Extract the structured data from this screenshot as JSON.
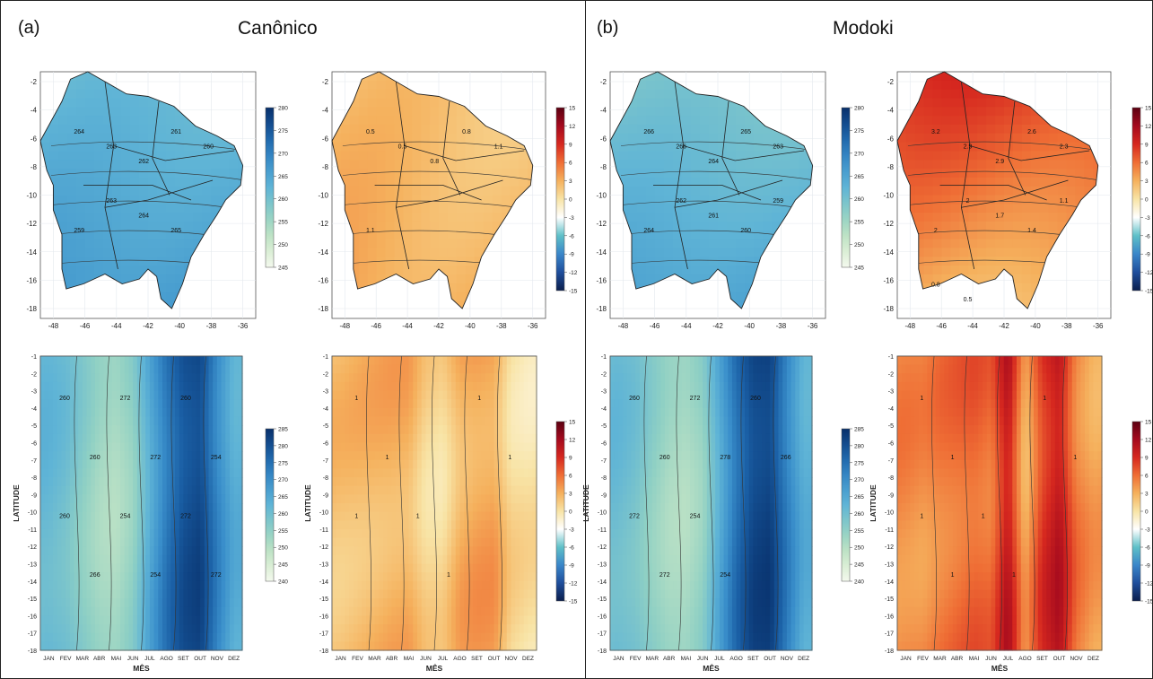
{
  "panels": [
    {
      "letter": "(a)",
      "title": "Canônico"
    },
    {
      "letter": "(b)",
      "title": "Modoki"
    }
  ],
  "colors": {
    "blue_scale": [
      "#f4f9ee",
      "#c8e6c5",
      "#8fd0c4",
      "#5fb4d6",
      "#3a8fcb",
      "#1a5fa5",
      "#08306b"
    ],
    "diverging_scale": [
      "#0b1e4d",
      "#1f4e9c",
      "#3a86c9",
      "#5fc0c8",
      "#ffffff",
      "#f8e4a6",
      "#f5b15d",
      "#ef6e35",
      "#d6281f",
      "#a50a1e",
      "#5c0011"
    ]
  },
  "chart_data": [
    {
      "type": "heatmap",
      "id": "a-map-mean",
      "panel": "(a)",
      "xticks": [
        -48,
        -46,
        -44,
        -42,
        -40,
        -38,
        -36
      ],
      "yticks": [
        -2,
        -4,
        -6,
        -8,
        -10,
        -12,
        -14,
        -16,
        -18
      ],
      "colorbar": {
        "min": 245,
        "max": 280,
        "ticks": [
          280,
          275,
          270,
          265,
          260,
          255,
          250,
          245
        ],
        "scale": "sequential"
      },
      "field": {
        "base": 0.45,
        "gx": 0.02,
        "gy": 0.18
      },
      "contour_labels": [
        "264",
        "263",
        "262",
        "261",
        "260",
        "259",
        "263",
        "264",
        "265"
      ]
    },
    {
      "type": "heatmap",
      "id": "a-map-anom",
      "panel": "(a)",
      "xticks": [
        -48,
        -46,
        -44,
        -42,
        -40,
        -38,
        -36
      ],
      "yticks": [
        -2,
        -4,
        -6,
        -8,
        -10,
        -12,
        -14,
        -16,
        -18
      ],
      "colorbar": {
        "min": -15,
        "max": 15,
        "ticks": [
          15,
          12,
          9,
          6,
          3,
          0,
          -3,
          -6,
          -9,
          -12,
          -15
        ],
        "scale": "diverging"
      },
      "field": {
        "base": 0.56,
        "gx": 0.0,
        "gy": 0.06
      },
      "contour_labels": [
        "0.5",
        "0.5",
        "0.8",
        "0.8",
        "1.1",
        "1.1"
      ]
    },
    {
      "type": "heatmap",
      "id": "a-hov-mean",
      "panel": "(a)",
      "xticks": [
        "JAN",
        "FEV",
        "MAR",
        "ABR",
        "MAI",
        "JUN",
        "JUL",
        "AGO",
        "SET",
        "OUT",
        "NOV",
        "DEZ"
      ],
      "yticks": [
        -1,
        -2,
        -3,
        -4,
        -5,
        -6,
        -7,
        -8,
        -9,
        -10,
        -11,
        -12,
        -13,
        -14,
        -15,
        -16,
        -17,
        -18
      ],
      "xlabel": "MÊS",
      "ylabel": "LATITUDE",
      "colorbar": {
        "min": 240,
        "max": 285,
        "ticks": [
          285,
          280,
          275,
          270,
          265,
          260,
          255,
          250,
          245,
          240
        ],
        "scale": "sequential"
      },
      "monthly_profile": [
        0.48,
        0.44,
        0.36,
        0.28,
        0.25,
        0.33,
        0.55,
        0.75,
        0.88,
        0.92,
        0.7,
        0.52
      ],
      "contour_labels": [
        "260",
        "260",
        "254",
        "254",
        "260",
        "254",
        "260",
        "266",
        "272",
        "272",
        "272",
        "272"
      ]
    },
    {
      "type": "heatmap",
      "id": "a-hov-anom",
      "panel": "(a)",
      "xticks": [
        "JAN",
        "FEV",
        "MAR",
        "ABR",
        "MAI",
        "JUN",
        "JUL",
        "AGO",
        "SET",
        "OUT",
        "NOV",
        "DEZ"
      ],
      "yticks": [
        -1,
        -2,
        -3,
        -4,
        -5,
        -6,
        -7,
        -8,
        -9,
        -10,
        -11,
        -12,
        -13,
        -14,
        -15,
        -16,
        -17,
        -18
      ],
      "xlabel": "MÊS",
      "ylabel": "LATITUDE",
      "colorbar": {
        "min": -15,
        "max": 15,
        "ticks": [
          15,
          12,
          9,
          6,
          3,
          0,
          -3,
          -6,
          -9,
          -12,
          -15
        ],
        "scale": "diverging"
      },
      "monthly_profile": [
        0.57,
        0.58,
        0.59,
        0.6,
        0.6,
        0.53,
        0.52,
        0.6,
        0.62,
        0.62,
        0.52,
        0.5
      ],
      "contour_labels": [
        "1",
        "1",
        "1",
        "1",
        "1",
        "1",
        "1"
      ]
    },
    {
      "type": "heatmap",
      "id": "b-map-mean",
      "panel": "(b)",
      "xticks": [
        -48,
        -46,
        -44,
        -42,
        -40,
        -38,
        -36
      ],
      "yticks": [
        -2,
        -4,
        -6,
        -8,
        -10,
        -12,
        -14,
        -16,
        -18
      ],
      "colorbar": {
        "min": 245,
        "max": 280,
        "ticks": [
          280,
          275,
          270,
          265,
          260,
          255,
          250,
          245
        ],
        "scale": "sequential"
      },
      "field": {
        "base": 0.38,
        "gx": 0.02,
        "gy": 0.22
      },
      "contour_labels": [
        "266",
        "266",
        "264",
        "265",
        "263",
        "264",
        "262",
        "261",
        "260",
        "259"
      ]
    },
    {
      "type": "heatmap",
      "id": "b-map-anom",
      "panel": "(b)",
      "xticks": [
        -48,
        -46,
        -44,
        -42,
        -40,
        -38,
        -36
      ],
      "yticks": [
        -2,
        -4,
        -6,
        -8,
        -10,
        -12,
        -14,
        -16,
        -18
      ],
      "colorbar": {
        "min": -15,
        "max": 15,
        "ticks": [
          15,
          12,
          9,
          6,
          3,
          0,
          -3,
          -6,
          -9,
          -12,
          -15
        ],
        "scale": "diverging"
      },
      "field": {
        "base": 0.78,
        "gx": 0.0,
        "gy": -0.2
      },
      "contour_labels": [
        "3.2",
        "2.9",
        "2.9",
        "2.6",
        "2.3",
        "2",
        "2",
        "1.7",
        "1.4",
        "1.1",
        "0.8",
        "0.5"
      ]
    },
    {
      "type": "heatmap",
      "id": "b-hov-mean",
      "panel": "(b)",
      "xticks": [
        "JAN",
        "FEV",
        "MAR",
        "ABR",
        "MAI",
        "JUN",
        "JUL",
        "AGO",
        "SET",
        "OUT",
        "NOV",
        "DEZ"
      ],
      "yticks": [
        -1,
        -2,
        -3,
        -4,
        -5,
        -6,
        -7,
        -8,
        -9,
        -10,
        -11,
        -12,
        -13,
        -14,
        -15,
        -16,
        -17,
        -18
      ],
      "xlabel": "MÊS",
      "ylabel": "LATITUDE",
      "colorbar": {
        "min": 240,
        "max": 285,
        "ticks": [
          285,
          280,
          275,
          270,
          265,
          260,
          255,
          250,
          245,
          240
        ],
        "scale": "sequential"
      },
      "monthly_profile": [
        0.46,
        0.42,
        0.34,
        0.27,
        0.25,
        0.32,
        0.55,
        0.78,
        0.92,
        0.94,
        0.72,
        0.52
      ],
      "contour_labels": [
        "260",
        "260",
        "254",
        "254",
        "260",
        "266",
        "272",
        "272",
        "272",
        "278"
      ]
    },
    {
      "type": "heatmap",
      "id": "b-hov-anom",
      "panel": "(b)",
      "xticks": [
        "JAN",
        "FEV",
        "MAR",
        "ABR",
        "MAI",
        "JUN",
        "JUL",
        "AGO",
        "SET",
        "OUT",
        "NOV",
        "DEZ"
      ],
      "yticks": [
        -1,
        -2,
        -3,
        -4,
        -5,
        -6,
        -7,
        -8,
        -9,
        -10,
        -11,
        -12,
        -13,
        -14,
        -15,
        -16,
        -17,
        -18
      ],
      "xlabel": "MÊS",
      "ylabel": "LATITUDE",
      "colorbar": {
        "min": -15,
        "max": 15,
        "ticks": [
          15,
          12,
          9,
          6,
          3,
          0,
          -3,
          -6,
          -9,
          -12,
          -15
        ],
        "scale": "diverging"
      },
      "monthly_profile": [
        0.66,
        0.65,
        0.68,
        0.7,
        0.72,
        0.7,
        0.86,
        0.6,
        0.78,
        0.86,
        0.68,
        0.62
      ],
      "contour_labels": [
        "1",
        "1",
        "1",
        "1",
        "1",
        "1",
        "1",
        "1"
      ]
    }
  ]
}
